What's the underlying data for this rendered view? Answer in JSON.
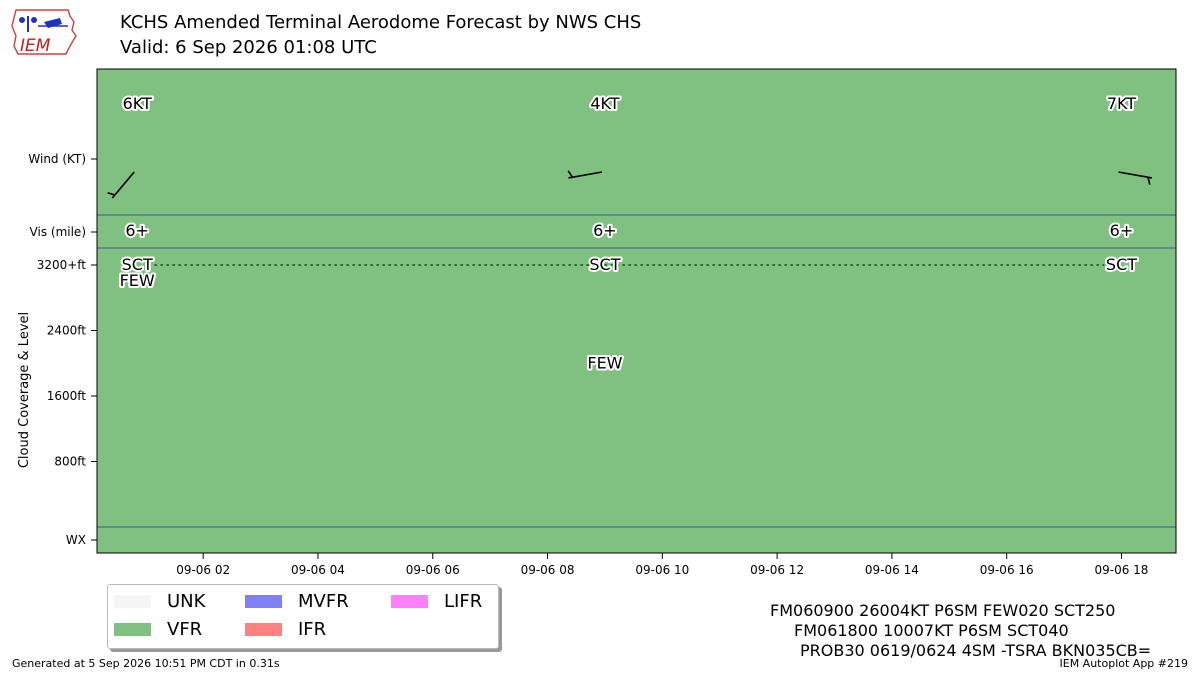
{
  "header": {
    "title": "KCHS Amended Terminal Aerodome Forecast by NWS CHS",
    "valid": "Valid: 6 Sep 2026 01:08 UTC",
    "logo_text": "IEM"
  },
  "chart_data": {
    "type": "taf_timeline",
    "x": {
      "min_hours": 0.15,
      "max_hours": 18.95,
      "ticks": [
        {
          "h": 2,
          "label": "09-06 02"
        },
        {
          "h": 4,
          "label": "09-06 04"
        },
        {
          "h": 6,
          "label": "09-06 06"
        },
        {
          "h": 8,
          "label": "09-06 08"
        },
        {
          "h": 10,
          "label": "09-06 10"
        },
        {
          "h": 12,
          "label": "09-06 12"
        },
        {
          "h": 14,
          "label": "09-06 14"
        },
        {
          "h": 16,
          "label": "09-06 16"
        },
        {
          "h": 18,
          "label": "09-06 18"
        }
      ]
    },
    "y_labels": {
      "wind": "Wind (KT)",
      "vis": "Vis (mile)",
      "cloud_axis": "Cloud Coverage & Level",
      "wx": "WX"
    },
    "cloud_ticks": [
      {
        "ft": 3200,
        "label": "3200+ft"
      },
      {
        "ft": 2400,
        "label": "2400ft"
      },
      {
        "ft": 1600,
        "label": "1600ft"
      },
      {
        "ft": 800,
        "label": "800ft"
      }
    ],
    "cloud_ylim": [
      0,
      3200
    ],
    "background_category": "VFR",
    "forecasts": [
      {
        "h": 0.85,
        "wind_label": "6KT",
        "wind_dir": 220,
        "wind_kt": 6,
        "vis_label": "6+",
        "clouds": [
          {
            "cover": "FEW",
            "ft": 3000
          },
          {
            "cover": "SCT",
            "ft": 3200
          }
        ]
      },
      {
        "h": 9.0,
        "wind_label": "4KT",
        "wind_dir": 260,
        "wind_kt": 4,
        "vis_label": "6+",
        "clouds": [
          {
            "cover": "FEW",
            "ft": 2000
          },
          {
            "cover": "SCT",
            "ft": 3200
          }
        ]
      },
      {
        "h": 18.0,
        "wind_label": "7KT",
        "wind_dir": 100,
        "wind_kt": 7,
        "vis_label": "6+",
        "clouds": [
          {
            "cover": "SCT",
            "ft": 3200
          }
        ]
      }
    ],
    "legend": [
      {
        "label": "UNK",
        "color": "#f5f5f5"
      },
      {
        "label": "MVFR",
        "color": "#8080f8"
      },
      {
        "label": "LIFR",
        "color": "#ff80ff"
      },
      {
        "label": "VFR",
        "color": "#80c080"
      },
      {
        "label": "IFR",
        "color": "#ff8080"
      }
    ],
    "colors": {
      "vfr_fill": "#80c080",
      "separator": "#3d5a99",
      "dots": "#2a6b2a"
    }
  },
  "raw_taf": [
    "FM060900 26004KT P6SM FEW020 SCT250",
    "FM061800 10007KT P6SM SCT040",
    "PROB30 0619/0624 4SM -TSRA BKN035CB="
  ],
  "footer": {
    "generated": "Generated at 5 Sep 2026 10:51 PM CDT in 0.31s",
    "app": "IEM Autoplot App #219"
  }
}
